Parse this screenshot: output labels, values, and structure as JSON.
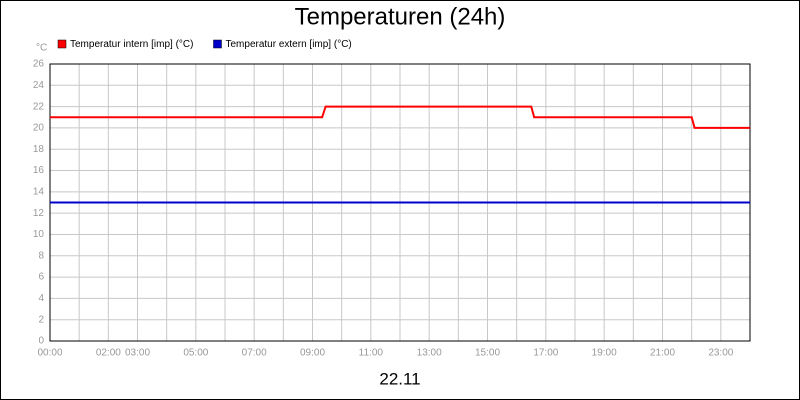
{
  "chart_data": {
    "type": "line",
    "title": "Temperaturen (24h)",
    "xlabel": "22.11",
    "ylabel": "°C",
    "xlim": [
      0,
      24
    ],
    "xticks": [
      {
        "value": 0,
        "label": "00:00"
      },
      {
        "value": 2,
        "label": "02:00"
      },
      {
        "value": 3,
        "label": "03:00"
      },
      {
        "value": 5,
        "label": "05:00"
      },
      {
        "value": 7,
        "label": "07:00"
      },
      {
        "value": 9,
        "label": "09:00"
      },
      {
        "value": 11,
        "label": "11:00"
      },
      {
        "value": 13,
        "label": "13:00"
      },
      {
        "value": 15,
        "label": "15:00"
      },
      {
        "value": 17,
        "label": "17:00"
      },
      {
        "value": 19,
        "label": "19:00"
      },
      {
        "value": 21,
        "label": "21:00"
      },
      {
        "value": 23,
        "label": "23:00"
      }
    ],
    "xminor_ticks": [
      1,
      4,
      6,
      8,
      10,
      12,
      14,
      16,
      18,
      20,
      22,
      24
    ],
    "ylim": [
      0,
      26
    ],
    "yticks": [
      0,
      2,
      4,
      6,
      8,
      10,
      12,
      14,
      16,
      18,
      20,
      22,
      24,
      26
    ],
    "grid": true,
    "legend": "top-left",
    "series": [
      {
        "name": "Temperatur intern [imp] (°C)",
        "color": "#ff0000",
        "x": [
          0,
          9.33,
          9.45,
          16.5,
          16.6,
          22.0,
          22.1,
          24
        ],
        "values": [
          21,
          21,
          22,
          22,
          21,
          21,
          20,
          20
        ]
      },
      {
        "name": "Temperatur extern [imp] (°C)",
        "color": "#0000cc",
        "x": [
          0,
          24
        ],
        "values": [
          13,
          13
        ]
      }
    ]
  }
}
